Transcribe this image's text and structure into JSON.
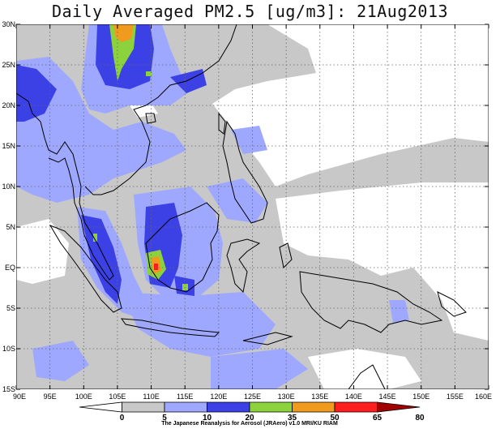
{
  "title": "Daily Averaged PM2.5 [ug/m3]: 21Aug2013",
  "lat_labels": [
    "30N",
    "25N",
    "20N",
    "15N",
    "10N",
    "5N",
    "EQ",
    "5S",
    "10S",
    "15S"
  ],
  "lon_labels": [
    "90E",
    "95E",
    "100E",
    "105E",
    "110E",
    "115E",
    "120E",
    "125E",
    "130E",
    "135E",
    "140E",
    "145E",
    "150E",
    "155E",
    "160E"
  ],
  "colorbar": {
    "levels": [
      "0",
      "5",
      "10",
      "20",
      "35",
      "50",
      "65",
      "80"
    ],
    "colors": [
      "#ffffff",
      "#c8c8c8",
      "#9fa8ff",
      "#3c41e6",
      "#8cd23c",
      "#f09a1e",
      "#ff1e1e",
      "#a00000"
    ]
  },
  "credit": "The Japanese Reanalysis for Aerosol (JRAero) v1.0 MRI/KU RIAM",
  "map_extent": {
    "lon": [
      90,
      160
    ],
    "lat": [
      -15,
      30
    ]
  }
}
